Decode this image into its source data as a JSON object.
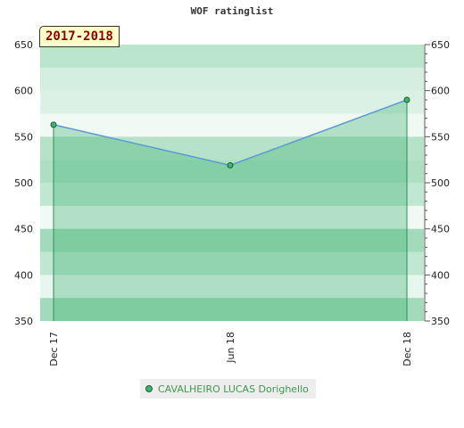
{
  "chart_data": {
    "type": "area",
    "title": "WOF ratinglist",
    "period": "2017-2018",
    "x": [
      "Dec 17",
      "Jun 18",
      "Dec 18"
    ],
    "series": [
      {
        "name": "CAVALHEIRO LUCAS Dorighello",
        "values": [
          563,
          519,
          590
        ]
      }
    ],
    "ylim": [
      350,
      650
    ],
    "yticks": [
      350,
      400,
      450,
      500,
      550,
      600,
      650
    ],
    "grid": true,
    "legend": "bottom",
    "colors": {
      "line": "#5b9bd5",
      "area": "#3cb371",
      "marker_fill": "#3cb371",
      "marker_stroke": "#1f5f2f",
      "drop_line": "#2e8b57",
      "band_base": "#3cb371",
      "badge_bg": "#ffffc8",
      "badge_text": "#8b0000"
    },
    "x_tick_format": "rotated"
  }
}
